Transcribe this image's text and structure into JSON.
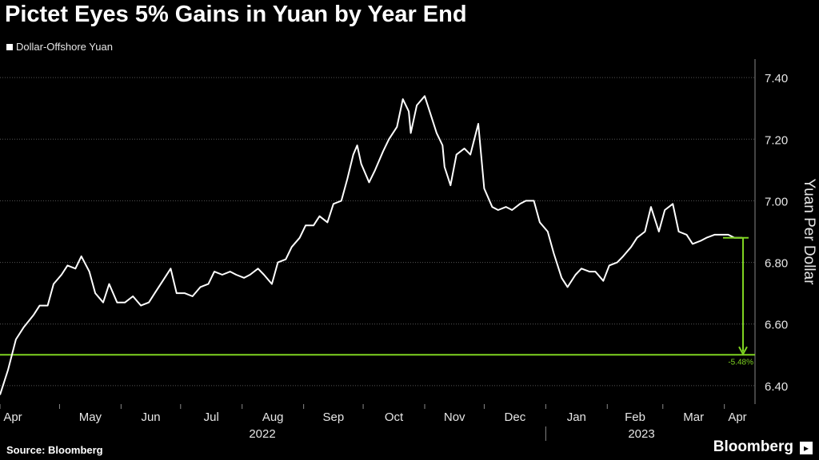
{
  "title": "Pictet Eyes 5% Gains in Yuan by Year End",
  "legend_label": "Dollar-Offshore Yuan",
  "source": "Source: Bloomberg",
  "brand": "Bloomberg",
  "colors": {
    "line": "#ffffff",
    "target": "#7ed321",
    "grid": "#555555",
    "background": "#000000"
  },
  "chart_data": {
    "type": "line",
    "title": "Pictet Eyes 5% Gains in Yuan by Year End",
    "ylabel": "Yuan Per Dollar",
    "ylim": [
      6.34,
      7.46
    ],
    "yticks": [
      "6.40",
      "6.60",
      "6.80",
      "7.00",
      "7.20",
      "7.40"
    ],
    "grid": true,
    "month_labels": [
      "Apr",
      "May",
      "Jun",
      "Jul",
      "Aug",
      "Sep",
      "Oct",
      "Nov",
      "Dec",
      "Jan",
      "Feb",
      "Mar",
      "Apr"
    ],
    "year_labels": [
      "2022",
      "2023"
    ],
    "series": [
      {
        "name": "Dollar-Offshore Yuan",
        "points": [
          [
            "2022-04-01",
            6.37
          ],
          [
            "2022-04-05",
            6.45
          ],
          [
            "2022-04-09",
            6.55
          ],
          [
            "2022-04-13",
            6.59
          ],
          [
            "2022-04-18",
            6.63
          ],
          [
            "2022-04-21",
            6.66
          ],
          [
            "2022-04-25",
            6.66
          ],
          [
            "2022-04-28",
            6.73
          ],
          [
            "2022-05-02",
            6.76
          ],
          [
            "2022-05-05",
            6.79
          ],
          [
            "2022-05-09",
            6.78
          ],
          [
            "2022-05-12",
            6.82
          ],
          [
            "2022-05-16",
            6.77
          ],
          [
            "2022-05-19",
            6.7
          ],
          [
            "2022-05-23",
            6.67
          ],
          [
            "2022-05-26",
            6.73
          ],
          [
            "2022-05-30",
            6.67
          ],
          [
            "2022-06-03",
            6.67
          ],
          [
            "2022-06-07",
            6.69
          ],
          [
            "2022-06-11",
            6.66
          ],
          [
            "2022-06-15",
            6.67
          ],
          [
            "2022-06-18",
            6.7
          ],
          [
            "2022-06-22",
            6.74
          ],
          [
            "2022-06-26",
            6.78
          ],
          [
            "2022-06-29",
            6.7
          ],
          [
            "2022-07-03",
            6.7
          ],
          [
            "2022-07-07",
            6.69
          ],
          [
            "2022-07-11",
            6.72
          ],
          [
            "2022-07-15",
            6.73
          ],
          [
            "2022-07-18",
            6.77
          ],
          [
            "2022-07-22",
            6.76
          ],
          [
            "2022-07-26",
            6.77
          ],
          [
            "2022-07-29",
            6.76
          ],
          [
            "2022-08-02",
            6.75
          ],
          [
            "2022-08-05",
            6.76
          ],
          [
            "2022-08-09",
            6.78
          ],
          [
            "2022-08-12",
            6.76
          ],
          [
            "2022-08-16",
            6.73
          ],
          [
            "2022-08-19",
            6.8
          ],
          [
            "2022-08-23",
            6.81
          ],
          [
            "2022-08-26",
            6.85
          ],
          [
            "2022-08-30",
            6.88
          ],
          [
            "2022-09-02",
            6.92
          ],
          [
            "2022-09-06",
            6.92
          ],
          [
            "2022-09-09",
            6.95
          ],
          [
            "2022-09-13",
            6.93
          ],
          [
            "2022-09-16",
            6.99
          ],
          [
            "2022-09-20",
            7.0
          ],
          [
            "2022-09-23",
            7.07
          ],
          [
            "2022-09-26",
            7.15
          ],
          [
            "2022-09-28",
            7.18
          ],
          [
            "2022-09-30",
            7.12
          ],
          [
            "2022-10-04",
            7.06
          ],
          [
            "2022-10-07",
            7.1
          ],
          [
            "2022-10-11",
            7.16
          ],
          [
            "2022-10-14",
            7.2
          ],
          [
            "2022-10-18",
            7.24
          ],
          [
            "2022-10-21",
            7.33
          ],
          [
            "2022-10-24",
            7.29
          ],
          [
            "2022-10-25",
            7.22
          ],
          [
            "2022-10-28",
            7.31
          ],
          [
            "2022-11-01",
            7.34
          ],
          [
            "2022-11-03",
            7.3
          ],
          [
            "2022-11-07",
            7.22
          ],
          [
            "2022-11-10",
            7.18
          ],
          [
            "2022-11-11",
            7.11
          ],
          [
            "2022-11-14",
            7.05
          ],
          [
            "2022-11-17",
            7.15
          ],
          [
            "2022-11-21",
            7.17
          ],
          [
            "2022-11-24",
            7.15
          ],
          [
            "2022-11-28",
            7.25
          ],
          [
            "2022-12-01",
            7.04
          ],
          [
            "2022-12-05",
            6.98
          ],
          [
            "2022-12-08",
            6.97
          ],
          [
            "2022-12-12",
            6.98
          ],
          [
            "2022-12-15",
            6.97
          ],
          [
            "2022-12-19",
            6.99
          ],
          [
            "2022-12-22",
            7.0
          ],
          [
            "2022-12-26",
            7.0
          ],
          [
            "2022-12-29",
            6.93
          ],
          [
            "2023-01-02",
            6.9
          ],
          [
            "2023-01-05",
            6.83
          ],
          [
            "2023-01-09",
            6.75
          ],
          [
            "2023-01-12",
            6.72
          ],
          [
            "2023-01-16",
            6.76
          ],
          [
            "2023-01-19",
            6.78
          ],
          [
            "2023-01-23",
            6.77
          ],
          [
            "2023-01-26",
            6.77
          ],
          [
            "2023-01-30",
            6.74
          ],
          [
            "2023-02-02",
            6.79
          ],
          [
            "2023-02-06",
            6.8
          ],
          [
            "2023-02-09",
            6.82
          ],
          [
            "2023-02-13",
            6.85
          ],
          [
            "2023-02-16",
            6.88
          ],
          [
            "2023-02-20",
            6.9
          ],
          [
            "2023-02-23",
            6.98
          ],
          [
            "2023-02-27",
            6.9
          ],
          [
            "2023-03-02",
            6.97
          ],
          [
            "2023-03-06",
            6.99
          ],
          [
            "2023-03-09",
            6.9
          ],
          [
            "2023-03-13",
            6.89
          ],
          [
            "2023-03-16",
            6.86
          ],
          [
            "2023-03-20",
            6.87
          ],
          [
            "2023-03-23",
            6.88
          ],
          [
            "2023-03-27",
            6.89
          ],
          [
            "2023-03-30",
            6.89
          ],
          [
            "2023-04-03",
            6.89
          ],
          [
            "2023-04-06",
            6.88
          ],
          [
            "2023-04-10",
            6.88
          ]
        ]
      }
    ],
    "target": {
      "current": 6.88,
      "level": 6.5,
      "label": "-5.48%"
    }
  }
}
